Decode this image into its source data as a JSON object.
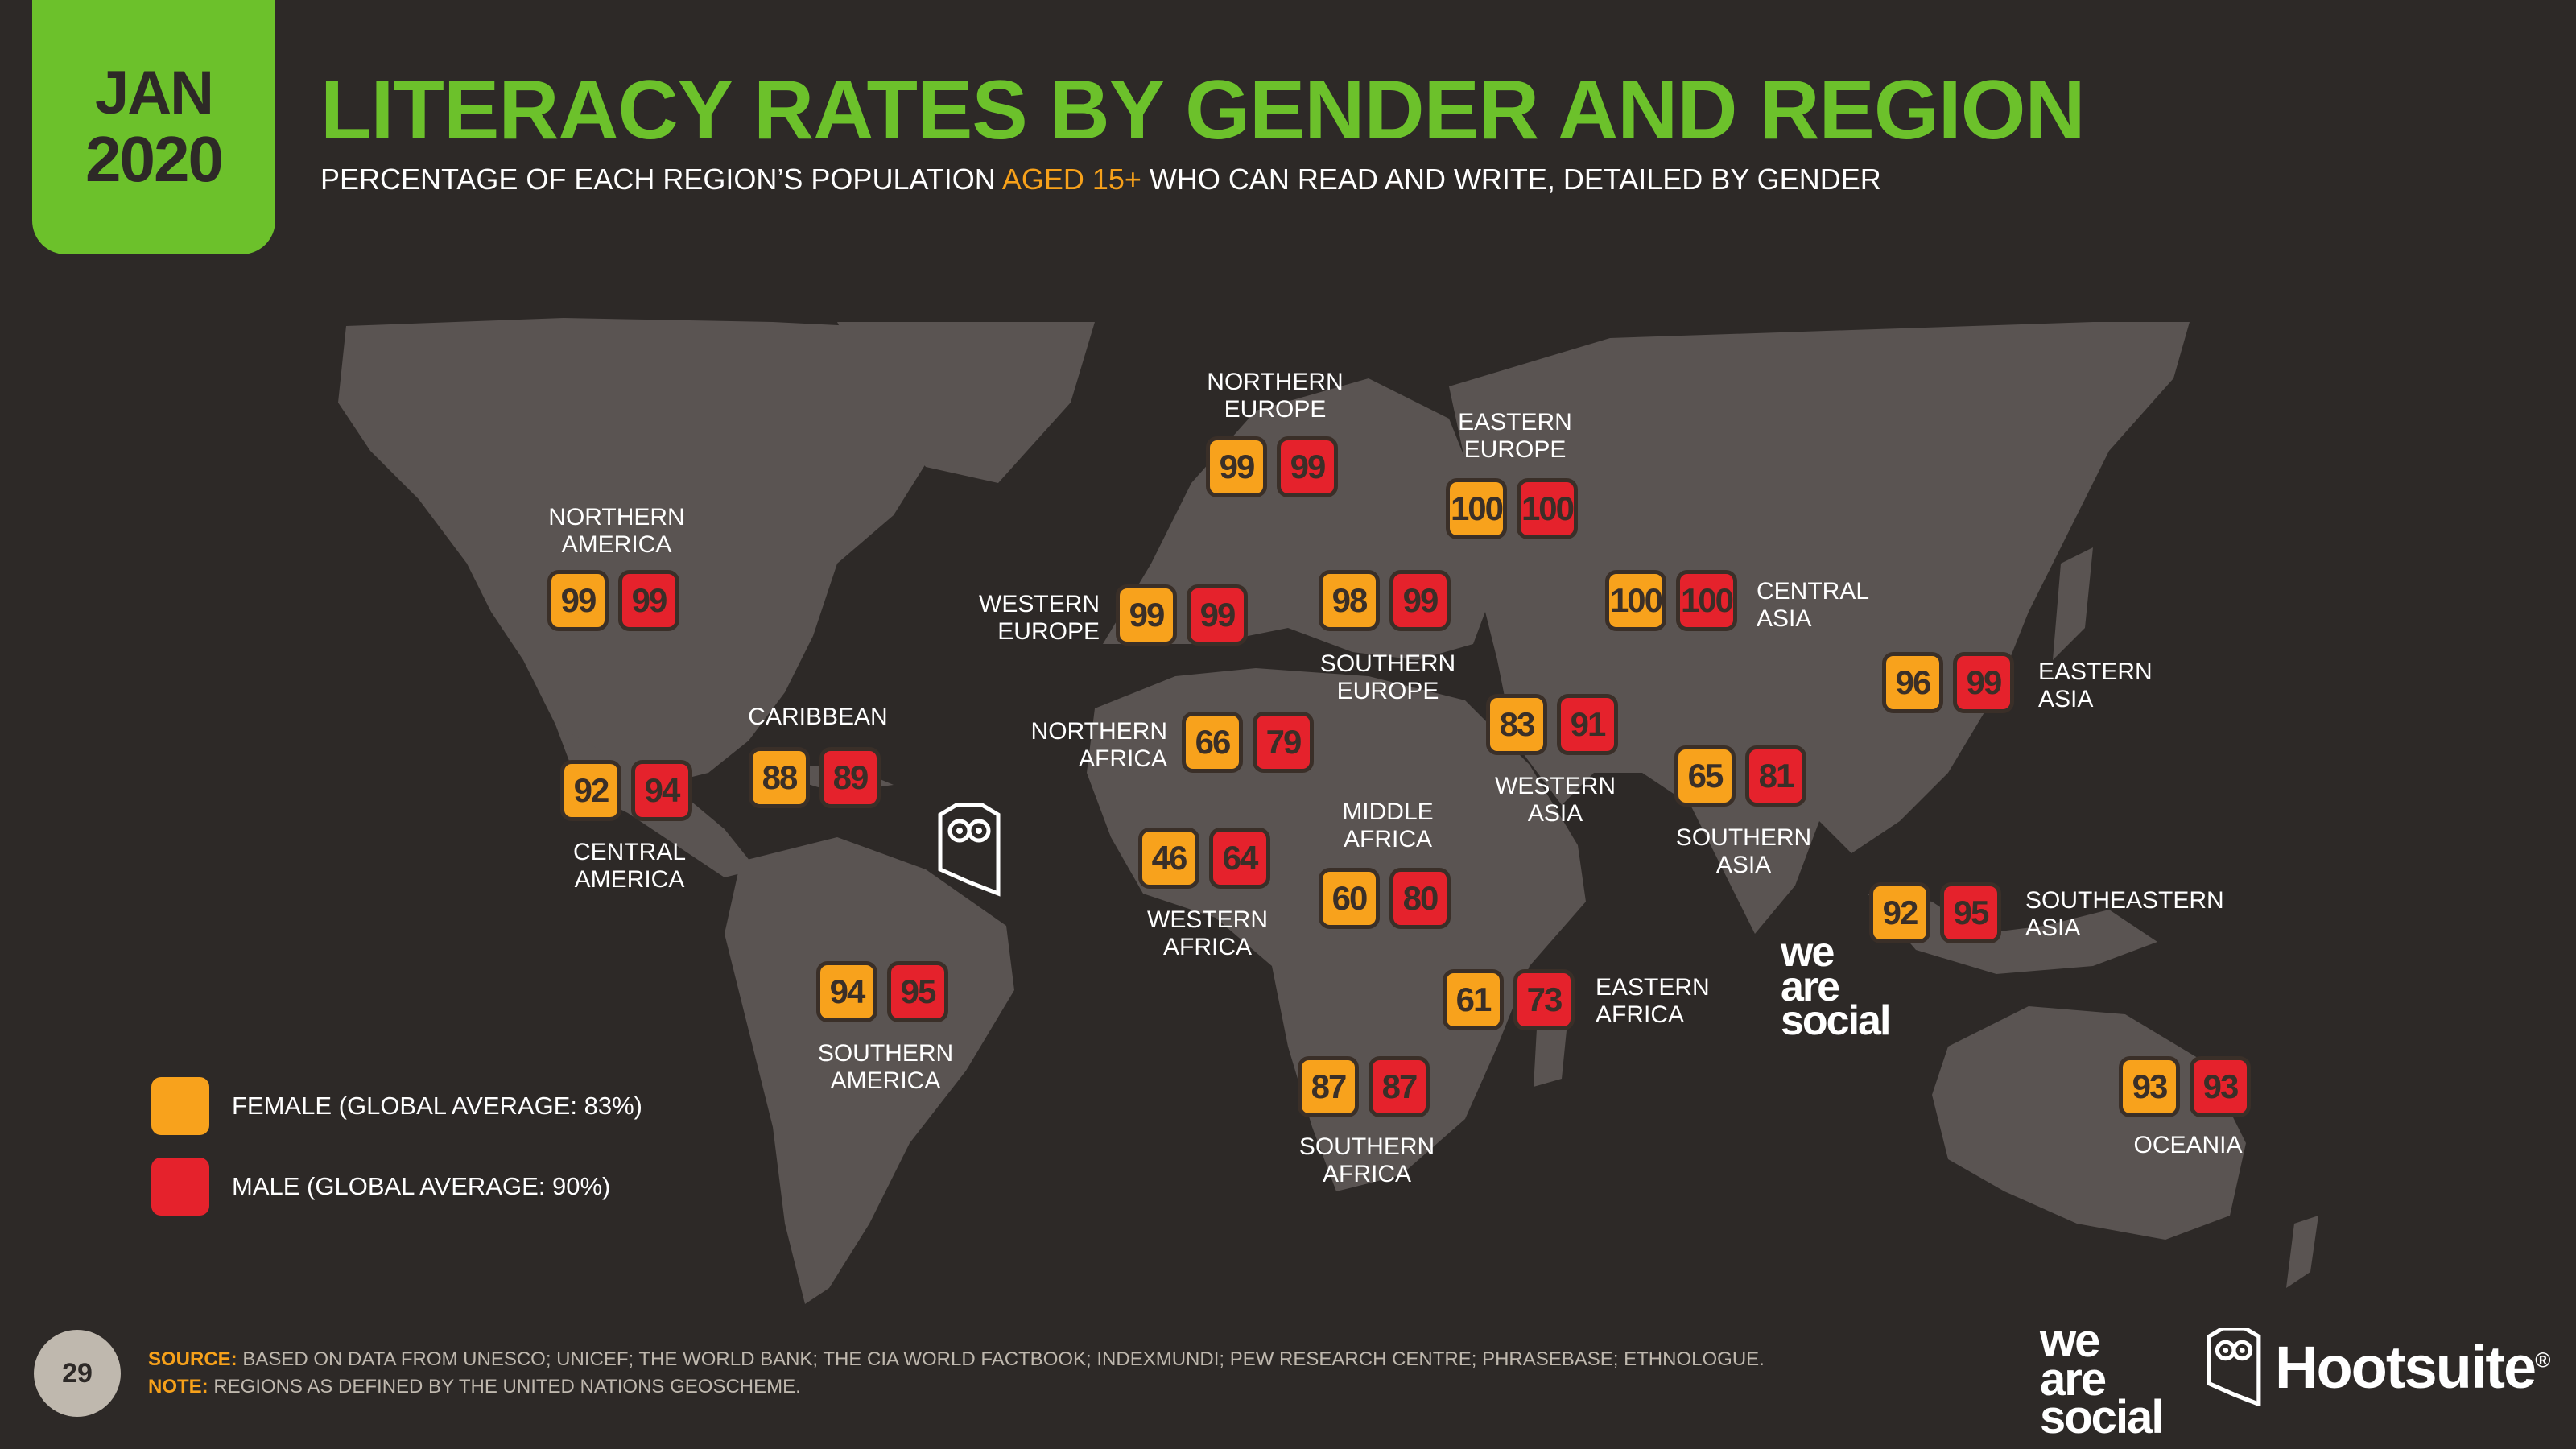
{
  "header": {
    "date_month": "JAN",
    "date_year": "2020",
    "title": "LITERACY RATES BY GENDER AND REGION",
    "subtitle_pre": "PERCENTAGE OF EACH REGION’S POPULATION ",
    "subtitle_highlight": "AGED 15+",
    "subtitle_post": " WHO CAN READ AND WRITE, DETAILED BY GENDER"
  },
  "colors": {
    "background": "#2d2927",
    "map": "#5a5452",
    "accent_green": "#6cc12b",
    "female": "#f8a21c",
    "male": "#e5222c"
  },
  "regions": [
    {
      "id": "northern-america",
      "label": "NORTHERN AMERICA",
      "female": 99,
      "male": 99
    },
    {
      "id": "central-america",
      "label": "CENTRAL AMERICA",
      "female": 92,
      "male": 94
    },
    {
      "id": "caribbean",
      "label": "CARIBBEAN",
      "female": 88,
      "male": 89
    },
    {
      "id": "southern-america",
      "label": "SOUTHERN AMERICA",
      "female": 94,
      "male": 95
    },
    {
      "id": "northern-europe",
      "label": "NORTHERN EUROPE",
      "female": 99,
      "male": 99
    },
    {
      "id": "western-europe",
      "label": "WESTERN EUROPE",
      "female": 99,
      "male": 99
    },
    {
      "id": "southern-europe",
      "label": "SOUTHERN EUROPE",
      "female": 98,
      "male": 99
    },
    {
      "id": "eastern-europe",
      "label": "EASTERN EUROPE",
      "female": 100,
      "male": 100
    },
    {
      "id": "northern-africa",
      "label": "NORTHERN AFRICA",
      "female": 66,
      "male": 79
    },
    {
      "id": "western-africa",
      "label": "WESTERN AFRICA",
      "female": 46,
      "male": 64
    },
    {
      "id": "middle-africa",
      "label": "MIDDLE AFRICA",
      "female": 60,
      "male": 80
    },
    {
      "id": "eastern-africa",
      "label": "EASTERN AFRICA",
      "female": 61,
      "male": 73
    },
    {
      "id": "southern-africa",
      "label": "SOUTHERN AFRICA",
      "female": 87,
      "male": 87
    },
    {
      "id": "western-asia",
      "label": "WESTERN ASIA",
      "female": 83,
      "male": 91
    },
    {
      "id": "central-asia",
      "label": "CENTRAL ASIA",
      "female": 100,
      "male": 100
    },
    {
      "id": "southern-asia",
      "label": "SOUTHERN ASIA",
      "female": 65,
      "male": 81
    },
    {
      "id": "eastern-asia",
      "label": "EASTERN ASIA",
      "female": 96,
      "male": 99
    },
    {
      "id": "southeastern-asia",
      "label": "SOUTHEASTERN ASIA",
      "female": 92,
      "male": 95
    },
    {
      "id": "oceania",
      "label": "OCEANIA",
      "female": 93,
      "male": 93
    }
  ],
  "legend": {
    "female": "FEMALE (GLOBAL AVERAGE: 83%)",
    "male": "MALE (GLOBAL AVERAGE: 90%)"
  },
  "footer": {
    "page_number": "29",
    "source_label": "SOURCE:",
    "source_text": " BASED ON DATA FROM UNESCO; UNICEF; THE WORLD BANK; THE CIA WORLD FACTBOOK; INDEXMUNDI; PEW RESEARCH CENTRE; PHRASEBASE; ETHNOLOGUE.",
    "note_label": "NOTE:",
    "note_text": " REGIONS AS DEFINED BY THE UNITED NATIONS GEOSCHEME."
  },
  "logos": {
    "we_are_social": [
      "we",
      "are",
      "social"
    ],
    "hootsuite": "Hootsuite",
    "registered": "®"
  }
}
